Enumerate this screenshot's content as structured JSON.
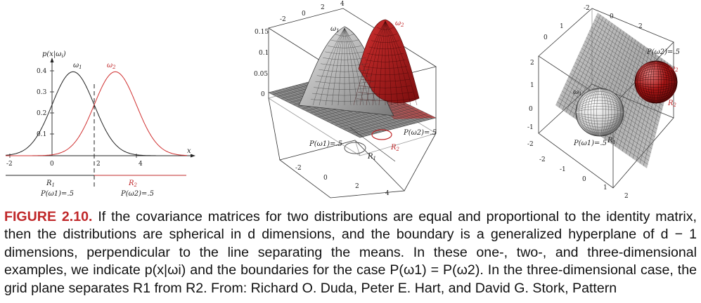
{
  "panel_1d": {
    "ylabel": "p(x|ω",
    "ylabel_sub": "i",
    "ylabel_end": ")",
    "xlabel": "x",
    "y_ticks": [
      "0.4",
      "0.3",
      "0.2",
      "0.1"
    ],
    "x_ticks": [
      "-2",
      "0",
      "2",
      "4"
    ],
    "omega1_label": "ω",
    "omega1_sub": "1",
    "omega2_label": "ω",
    "omega2_sub": "2",
    "region1_label": "R",
    "region1_sub": "1",
    "region2_label": "R",
    "region2_sub": "2",
    "prior1": "P(ω1)=.5",
    "prior2": "P(ω2)=.5",
    "color_class1": "#222222",
    "color_class2": "#d03030"
  },
  "panel_2d": {
    "z_ticks": [
      "0.15",
      "0.1",
      "0.05",
      "0"
    ],
    "back_ticks": [
      "-2",
      "0",
      "2",
      "4"
    ],
    "front_ticks": [
      "-2",
      "0",
      "2",
      "4"
    ],
    "omega1_label": "ω",
    "omega1_sub": "1",
    "omega2_label": "ω",
    "omega2_sub": "2",
    "prior1": "P(ω1)=.5",
    "prior2": "P(ω2)=.5",
    "region1_label": "R",
    "region1_sub": "1",
    "region2_label": "R",
    "region2_sub": "2"
  },
  "panel_3d": {
    "top_ticks": [
      "-2",
      "0",
      "2"
    ],
    "left_ticks": [
      "2",
      "1",
      "0",
      "-1",
      "-2"
    ],
    "bottom_ticks": [
      "-2",
      "-1",
      "0",
      "1",
      "2"
    ],
    "right_top_ticks": [
      "1",
      "0"
    ],
    "omega1_label": "ω",
    "omega1_sub": "1",
    "omega2_label": "ω",
    "omega2_sub": "2",
    "prior1": "P(ω1)=.5",
    "prior2": "P(ω2)=.5",
    "region1_label": "R",
    "region1_sub": "1",
    "region2_label": "R",
    "region2_sub": "2"
  },
  "caption": {
    "heading": "FIGURE 2.10.",
    "text": " If the covariance matrices for two distributions are equal and proportional to the identity matrix, then the distributions are spherical in d dimensions, and the boundary is a generalized hyperplane of d − 1 dimensions, perpendicular to the line separating the means. In these one-, two-, and three-dimensional examples, we indicate p(x|ωi) and the boundaries for the case P(ω1) = P(ω2). In the three-dimensional case, the grid plane separates R1 from R2. From: Richard O. Duda, Peter E. Hart, and David G. Stork, Pattern"
  }
}
